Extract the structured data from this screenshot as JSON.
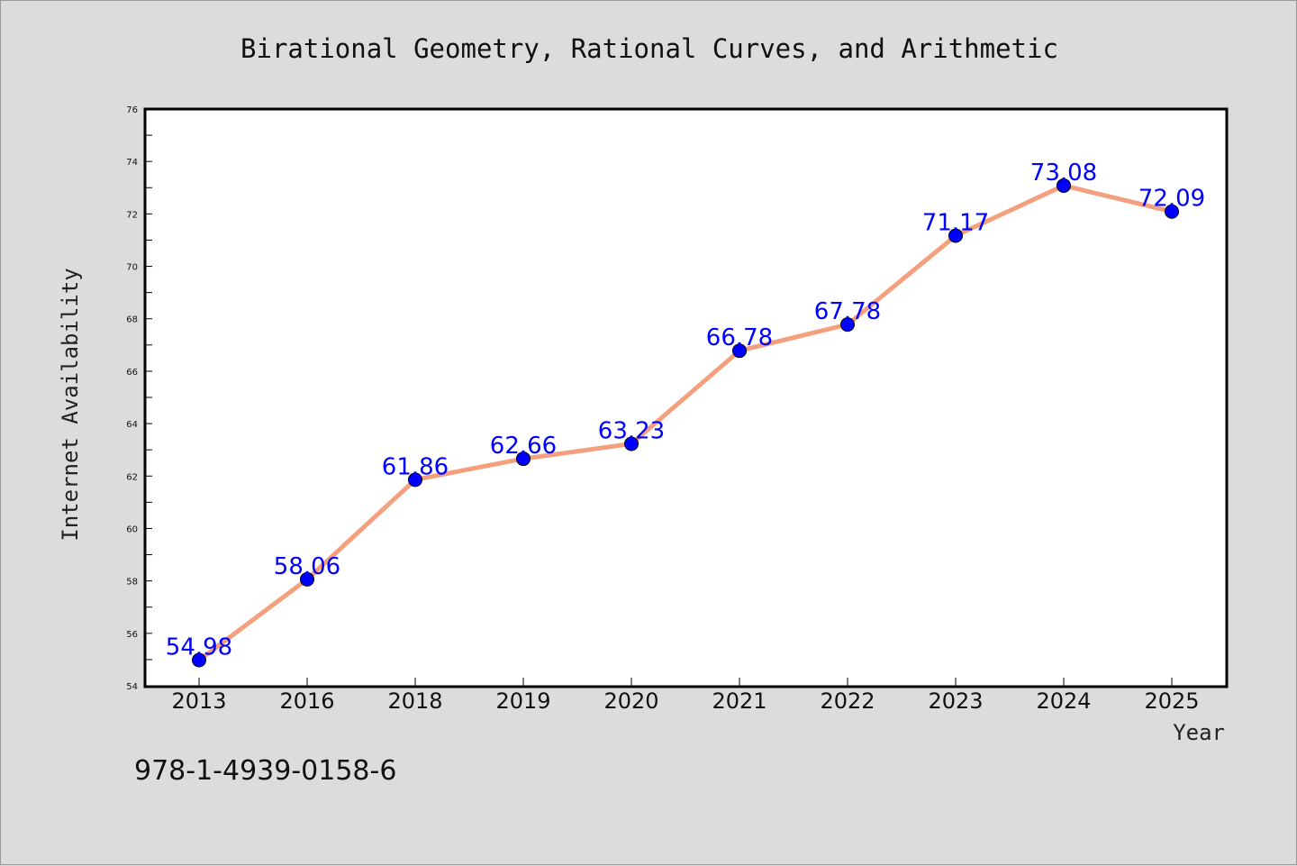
{
  "chart_data": {
    "type": "line",
    "title": "Birational Geometry, Rational Curves, and Arithmetic",
    "xlabel": "Year",
    "ylabel": "Internet Availability",
    "categories": [
      "2013",
      "2016",
      "2018",
      "2019",
      "2020",
      "2021",
      "2022",
      "2023",
      "2024",
      "2025"
    ],
    "series": [
      {
        "values": [
          54.98,
          58.06,
          61.86,
          62.66,
          63.23,
          66.78,
          67.78,
          71.17,
          73.08,
          72.09
        ]
      }
    ],
    "data_labels": [
      "54.98",
      "58.06",
      "61.86",
      "62.66",
      "63.23",
      "66.78",
      "67.78",
      "71.17",
      "73.08",
      "72.09"
    ],
    "ylim": [
      54,
      76
    ],
    "yticks": [
      "54",
      "56",
      "58",
      "60",
      "62",
      "64",
      "66",
      "68",
      "70",
      "72",
      "74",
      "76"
    ],
    "grid": false,
    "legend": "none",
    "line_color": "#f4a07e",
    "marker_color": "#0000ff",
    "label_color": "#0000ff"
  },
  "footer": {
    "isbn": "978-1-4939-0158-6"
  }
}
